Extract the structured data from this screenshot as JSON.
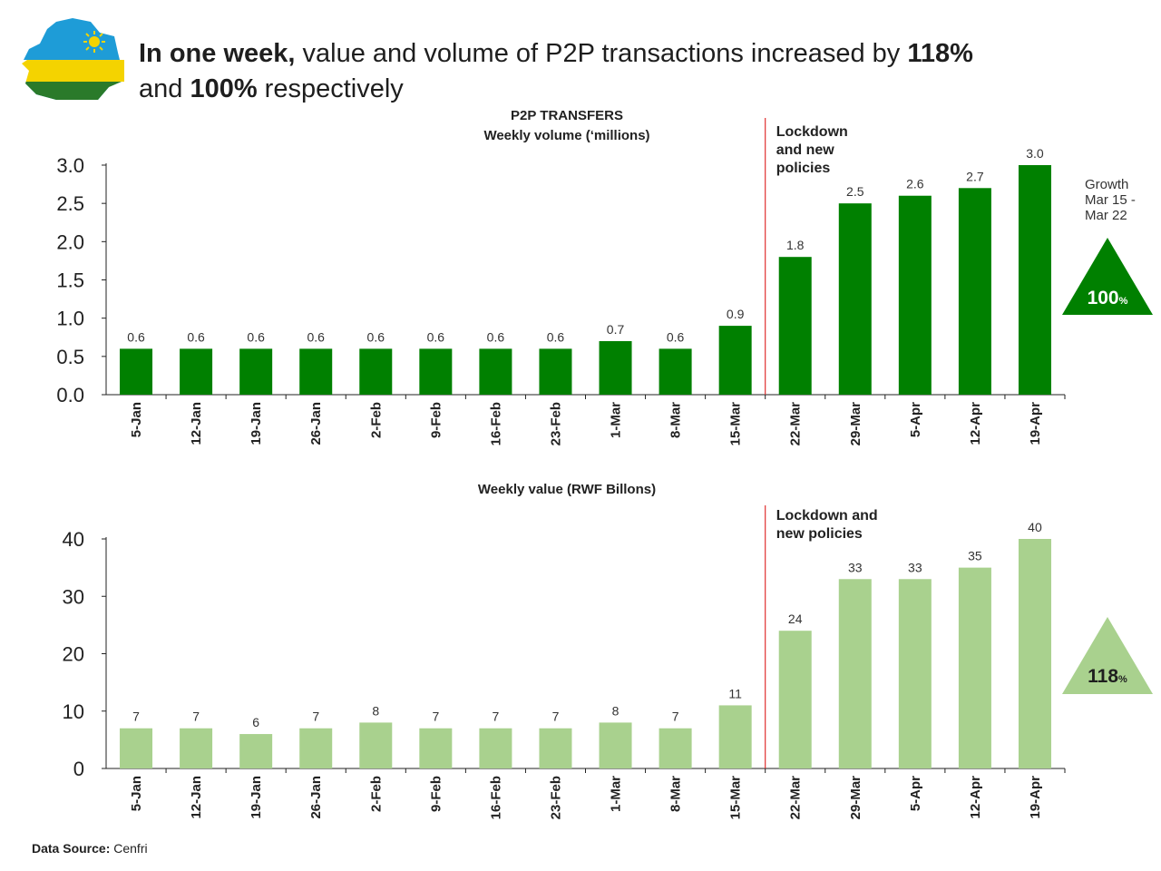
{
  "headline": {
    "bold1": "In one week,",
    "text1": " value and volume of P2P transactions increased by ",
    "bold2": "118%",
    "text2": "and ",
    "bold3": "100%",
    "text3": "  respectively"
  },
  "footer": {
    "label": "Data Source:",
    "value": " Cenfri"
  },
  "colors": {
    "volume_bar": "#008000",
    "value_bar": "#a9d18e",
    "lockdown_line": "#e03030",
    "axis": "#222222"
  },
  "chart_data": [
    {
      "type": "bar",
      "title": "P2P TRANSFERS",
      "subtitle": "Weekly volume (‘millions)",
      "categories": [
        "5-Jan",
        "12-Jan",
        "19-Jan",
        "26-Jan",
        "2-Feb",
        "9-Feb",
        "16-Feb",
        "23-Feb",
        "1-Mar",
        "8-Mar",
        "15-Mar",
        "22-Mar",
        "29-Mar",
        "5-Apr",
        "12-Apr",
        "19-Apr"
      ],
      "values": [
        0.6,
        0.6,
        0.6,
        0.6,
        0.6,
        0.6,
        0.6,
        0.6,
        0.7,
        0.6,
        0.9,
        1.8,
        2.5,
        2.6,
        2.7,
        3.0
      ],
      "value_labels": [
        "0.6",
        "0.6",
        "0.6",
        "0.6",
        "0.6",
        "0.6",
        "0.6",
        "0.6",
        "0.7",
        "0.6",
        "0.9",
        "1.8",
        "2.5",
        "2.6",
        "2.7",
        "3.0"
      ],
      "ylim": [
        0,
        3.0
      ],
      "yticks": [
        0,
        0.5,
        1.0,
        1.5,
        2.0,
        2.5,
        3.0
      ],
      "ytick_labels": [
        "0.0",
        "0.5",
        "1.0",
        "1.5",
        "2.0",
        "2.5",
        "3.0"
      ],
      "annotation": {
        "lines": [
          "Lockdown",
          "and new",
          "policies"
        ],
        "after_category": "15-Mar"
      },
      "growth": {
        "lines": [
          "Growth",
          "Mar 15 -",
          "Mar 22"
        ],
        "value": "100",
        "unit": "%"
      }
    },
    {
      "type": "bar",
      "title": "Weekly value (RWF Billons)",
      "categories": [
        "5-Jan",
        "12-Jan",
        "19-Jan",
        "26-Jan",
        "2-Feb",
        "9-Feb",
        "16-Feb",
        "23-Feb",
        "1-Mar",
        "8-Mar",
        "15-Mar",
        "22-Mar",
        "29-Mar",
        "5-Apr",
        "12-Apr",
        "19-Apr"
      ],
      "values": [
        7,
        7,
        6,
        7,
        8,
        7,
        7,
        7,
        8,
        7,
        11,
        24,
        33,
        33,
        35,
        40
      ],
      "value_labels": [
        "7",
        "7",
        "6",
        "7",
        "8",
        "7",
        "7",
        "7",
        "8",
        "7",
        "11",
        "24",
        "33",
        "33",
        "35",
        "40"
      ],
      "ylim": [
        0,
        40
      ],
      "yticks": [
        0,
        10,
        20,
        30,
        40
      ],
      "ytick_labels": [
        "0",
        "10",
        "20",
        "30",
        "40"
      ],
      "annotation": {
        "lines": [
          "Lockdown and",
          "new policies"
        ],
        "after_category": "15-Mar"
      },
      "growth": {
        "value": "118",
        "unit": "%"
      }
    }
  ]
}
